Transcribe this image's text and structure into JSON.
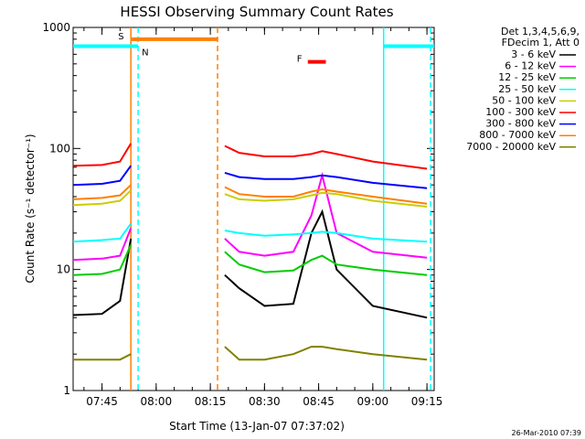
{
  "chart_data": {
    "type": "line",
    "title": "HESSI Observing Summary Count Rates",
    "xlabel": "Start Time (13-Jan-07 07:37:02)",
    "ylabel": "Count Rate (s⁻¹ detector⁻¹)",
    "x_range": [
      "07:37",
      "09:17"
    ],
    "y_range": [
      1,
      1000
    ],
    "y_scale": "log",
    "x_ticks": [
      "07:45",
      "08:00",
      "08:15",
      "08:30",
      "08:45",
      "09:00",
      "09:15"
    ],
    "y_ticks": [
      "1",
      "10",
      "100",
      "1000"
    ],
    "legend_placement": "right",
    "legend_header": [
      "Det 1,3,4,5,6,9,",
      "FDecim 1, Att 0"
    ],
    "data_gaps": [
      [
        "07:54",
        "08:18"
      ]
    ],
    "series": [
      {
        "name": "3 - 6 keV",
        "color": "#000000",
        "x": [
          "07:37",
          "07:45",
          "07:50",
          "07:53",
          "08:19",
          "08:23",
          "08:30",
          "08:38",
          "08:43",
          "08:46",
          "08:50",
          "09:00",
          "09:15"
        ],
        "y": [
          4.2,
          4.3,
          5.5,
          18,
          9,
          7,
          5,
          5.2,
          20,
          30,
          10,
          5,
          4
        ]
      },
      {
        "name": "6 - 12 keV",
        "color": "#ff00ff",
        "x": [
          "07:37",
          "07:45",
          "07:50",
          "07:53",
          "08:19",
          "08:23",
          "08:30",
          "08:38",
          "08:43",
          "08:46",
          "08:50",
          "09:00",
          "09:15"
        ],
        "y": [
          12,
          12.3,
          13,
          22,
          18,
          14,
          13,
          14,
          28,
          60,
          20,
          14,
          12.5
        ]
      },
      {
        "name": "12 - 25 keV",
        "color": "#00cc00",
        "x": [
          "07:37",
          "07:45",
          "07:50",
          "07:53",
          "08:19",
          "08:23",
          "08:30",
          "08:38",
          "08:43",
          "08:46",
          "08:50",
          "09:00",
          "09:15"
        ],
        "y": [
          9,
          9.2,
          10,
          16,
          14,
          11,
          9.5,
          9.8,
          12,
          13,
          11,
          10,
          9
        ]
      },
      {
        "name": "25 - 50 keV",
        "color": "#00ffff",
        "x": [
          "07:37",
          "07:45",
          "07:50",
          "07:53",
          "08:19",
          "08:23",
          "08:30",
          "08:38",
          "08:43",
          "08:46",
          "08:50",
          "09:00",
          "09:15"
        ],
        "y": [
          17,
          17.5,
          18,
          24,
          21,
          20,
          19,
          19.5,
          20,
          20.5,
          20,
          18,
          17
        ]
      },
      {
        "name": "50 - 100 keV",
        "color": "#cccc00",
        "x": [
          "07:37",
          "07:45",
          "07:50",
          "07:53",
          "08:19",
          "08:23",
          "08:30",
          "08:38",
          "08:43",
          "08:46",
          "08:50",
          "09:00",
          "09:15"
        ],
        "y": [
          34,
          35,
          37,
          45,
          42,
          38,
          37,
          38,
          41,
          43,
          42,
          37,
          33
        ]
      },
      {
        "name": "100 - 300 keV",
        "color": "#ff0000",
        "x": [
          "07:37",
          "07:45",
          "07:50",
          "07:53",
          "08:19",
          "08:23",
          "08:30",
          "08:38",
          "08:43",
          "08:46",
          "08:50",
          "09:00",
          "09:15"
        ],
        "y": [
          72,
          73,
          78,
          110,
          105,
          92,
          86,
          86,
          90,
          95,
          90,
          78,
          68
        ]
      },
      {
        "name": "300 - 800 keV",
        "color": "#0000ff",
        "x": [
          "07:37",
          "07:45",
          "07:50",
          "07:53",
          "08:19",
          "08:23",
          "08:30",
          "08:38",
          "08:43",
          "08:46",
          "08:50",
          "09:00",
          "09:15"
        ],
        "y": [
          50,
          51,
          54,
          72,
          63,
          58,
          56,
          56,
          58,
          60,
          58,
          52,
          47
        ]
      },
      {
        "name": "800 - 7000 keV",
        "color": "#ff8000",
        "x": [
          "07:37",
          "07:45",
          "07:50",
          "07:53",
          "08:19",
          "08:23",
          "08:30",
          "08:38",
          "08:43",
          "08:46",
          "08:50",
          "09:00",
          "09:15"
        ],
        "y": [
          38,
          39,
          41,
          50,
          48,
          42,
          40,
          40,
          44,
          46,
          44,
          40,
          35
        ]
      },
      {
        "name": "7000 - 20000 keV",
        "color": "#808000",
        "x": [
          "07:37",
          "07:45",
          "07:50",
          "07:53",
          "08:19",
          "08:23",
          "08:30",
          "08:38",
          "08:43",
          "08:46",
          "08:50",
          "09:00",
          "09:15"
        ],
        "y": [
          1.8,
          1.8,
          1.8,
          2.0,
          2.3,
          1.8,
          1.8,
          2.0,
          2.3,
          2.3,
          2.2,
          2.0,
          1.8
        ]
      }
    ],
    "annotations": [
      {
        "label": "S",
        "color": "#ff8000",
        "x_start": "07:53",
        "x_end": "08:17",
        "y": 800
      },
      {
        "label": "N",
        "color": "#00ffff",
        "x_start": "07:37",
        "x_end": "07:55",
        "y": 700
      },
      {
        "label": "",
        "color": "#00ffff",
        "x_start": "09:03",
        "x_end": "09:17",
        "y": 700
      },
      {
        "label": "F",
        "color": "#ff0000",
        "x_start": "08:42",
        "x_end": "08:47",
        "y": 520
      }
    ],
    "vertical_markers": [
      {
        "time": "07:53",
        "color": "#ff8000",
        "style": "solid"
      },
      {
        "time": "07:55",
        "color": "#00ffff",
        "style": "dashed"
      },
      {
        "time": "08:17",
        "color": "#ff8000",
        "style": "dashed"
      },
      {
        "time": "09:03",
        "color": "#00ffff",
        "style": "solid"
      },
      {
        "time": "09:16",
        "color": "#00ffff",
        "style": "dashed"
      }
    ],
    "timestamp": "26-Mar-2010 07:39"
  }
}
